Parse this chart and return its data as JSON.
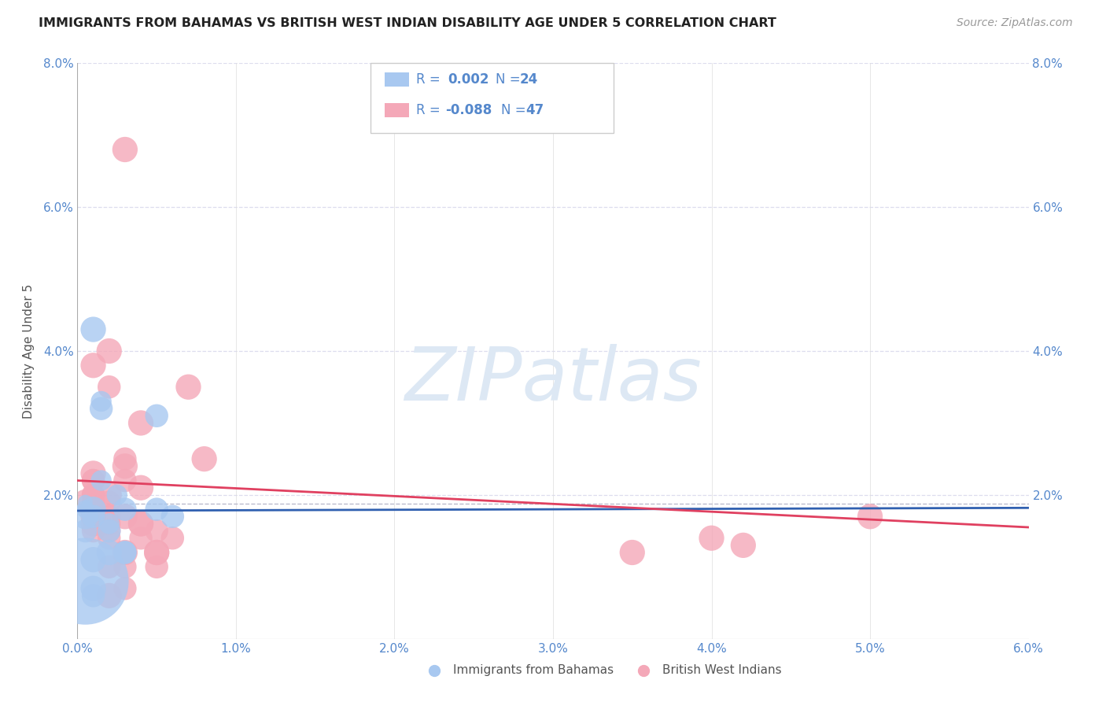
{
  "title": "IMMIGRANTS FROM BAHAMAS VS BRITISH WEST INDIAN DISABILITY AGE UNDER 5 CORRELATION CHART",
  "source": "Source: ZipAtlas.com",
  "ylabel": "Disability Age Under 5",
  "x_label_blue": "Immigrants from Bahamas",
  "x_label_pink": "British West Indians",
  "xlim": [
    0.0,
    0.06
  ],
  "ylim": [
    0.0,
    0.08
  ],
  "xticks": [
    0.0,
    0.01,
    0.02,
    0.03,
    0.04,
    0.05,
    0.06
  ],
  "yticks": [
    0.0,
    0.02,
    0.04,
    0.06,
    0.08
  ],
  "xtick_labels": [
    "0.0%",
    "1.0%",
    "2.0%",
    "3.0%",
    "4.0%",
    "5.0%",
    "6.0%"
  ],
  "ytick_labels_left": [
    "",
    "2.0%",
    "4.0%",
    "6.0%",
    "8.0%"
  ],
  "ytick_labels_right": [
    "",
    "2.0%",
    "4.0%",
    "6.0%",
    "8.0%"
  ],
  "blue_color": "#a8c8f0",
  "pink_color": "#f4a8b8",
  "trend_blue_color": "#3060b0",
  "trend_pink_color": "#e04060",
  "watermark_color": "#dde8f4",
  "axis_color": "#5588cc",
  "grid_color": "#ddddee",
  "blue_scatter_x": [
    0.0005,
    0.0015,
    0.0005,
    0.0015,
    0.0025,
    0.0005,
    0.001,
    0.0015,
    0.001,
    0.0005,
    0.001,
    0.002,
    0.005,
    0.001,
    0.002,
    0.003,
    0.006,
    0.005,
    0.003,
    0.003,
    0.002,
    0.0005,
    0.001,
    0.001
  ],
  "blue_scatter_y": [
    0.019,
    0.033,
    0.018,
    0.032,
    0.02,
    0.017,
    0.043,
    0.022,
    0.018,
    0.015,
    0.017,
    0.016,
    0.031,
    0.011,
    0.012,
    0.018,
    0.017,
    0.018,
    0.012,
    0.012,
    0.015,
    0.008,
    0.007,
    0.006
  ],
  "blue_scatter_size": [
    20,
    40,
    30,
    50,
    40,
    60,
    60,
    40,
    60,
    50,
    50,
    40,
    50,
    60,
    60,
    50,
    50,
    50,
    50,
    50,
    50,
    700,
    60,
    50
  ],
  "pink_scatter_x": [
    0.0005,
    0.001,
    0.002,
    0.001,
    0.002,
    0.001,
    0.003,
    0.001,
    0.001,
    0.003,
    0.002,
    0.002,
    0.003,
    0.002,
    0.003,
    0.001,
    0.004,
    0.001,
    0.004,
    0.005,
    0.008,
    0.002,
    0.003,
    0.004,
    0.005,
    0.006,
    0.002,
    0.001,
    0.001,
    0.001,
    0.001,
    0.002,
    0.003,
    0.003,
    0.004,
    0.005,
    0.007,
    0.003,
    0.004,
    0.002,
    0.003,
    0.04,
    0.05,
    0.042,
    0.035,
    0.005,
    0.002
  ],
  "pink_scatter_y": [
    0.019,
    0.02,
    0.04,
    0.038,
    0.035,
    0.017,
    0.025,
    0.023,
    0.022,
    0.024,
    0.017,
    0.02,
    0.022,
    0.016,
    0.017,
    0.019,
    0.021,
    0.015,
    0.014,
    0.015,
    0.025,
    0.015,
    0.012,
    0.016,
    0.012,
    0.014,
    0.019,
    0.022,
    0.02,
    0.018,
    0.016,
    0.014,
    0.01,
    0.007,
    0.016,
    0.01,
    0.035,
    0.068,
    0.03,
    0.01,
    0.012,
    0.014,
    0.017,
    0.013,
    0.012,
    0.012,
    0.006
  ],
  "pink_scatter_size": [
    60,
    50,
    60,
    60,
    50,
    60,
    50,
    60,
    50,
    60,
    50,
    60,
    50,
    50,
    60,
    50,
    60,
    50,
    50,
    50,
    60,
    50,
    60,
    60,
    60,
    50,
    50,
    50,
    50,
    50,
    60,
    50,
    50,
    50,
    60,
    50,
    60,
    60,
    60,
    50,
    50,
    60,
    60,
    60,
    60,
    60,
    60
  ],
  "blue_trend_x": [
    0.0,
    0.06
  ],
  "blue_trend_y": [
    0.0178,
    0.0182
  ],
  "pink_trend_x": [
    0.0,
    0.06
  ],
  "pink_trend_y": [
    0.022,
    0.0155
  ]
}
